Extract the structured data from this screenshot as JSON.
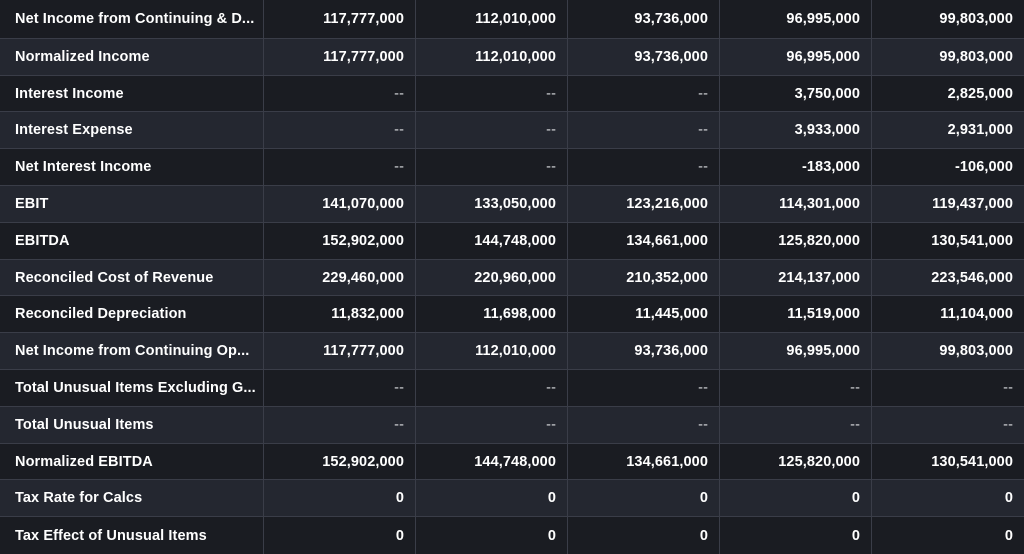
{
  "table": {
    "rows": [
      {
        "label": "Net Income from Continuing & D...",
        "values": [
          "117,777,000",
          "112,010,000",
          "93,736,000",
          "96,995,000",
          "99,803,000"
        ]
      },
      {
        "label": "Normalized Income",
        "values": [
          "117,777,000",
          "112,010,000",
          "93,736,000",
          "96,995,000",
          "99,803,000"
        ]
      },
      {
        "label": "Interest Income",
        "values": [
          "--",
          "--",
          "--",
          "3,750,000",
          "2,825,000"
        ]
      },
      {
        "label": "Interest Expense",
        "values": [
          "--",
          "--",
          "--",
          "3,933,000",
          "2,931,000"
        ]
      },
      {
        "label": "Net Interest Income",
        "values": [
          "--",
          "--",
          "--",
          "-183,000",
          "-106,000"
        ]
      },
      {
        "label": "EBIT",
        "values": [
          "141,070,000",
          "133,050,000",
          "123,216,000",
          "114,301,000",
          "119,437,000"
        ]
      },
      {
        "label": "EBITDA",
        "values": [
          "152,902,000",
          "144,748,000",
          "134,661,000",
          "125,820,000",
          "130,541,000"
        ]
      },
      {
        "label": "Reconciled Cost of Revenue",
        "values": [
          "229,460,000",
          "220,960,000",
          "210,352,000",
          "214,137,000",
          "223,546,000"
        ]
      },
      {
        "label": "Reconciled Depreciation",
        "values": [
          "11,832,000",
          "11,698,000",
          "11,445,000",
          "11,519,000",
          "11,104,000"
        ]
      },
      {
        "label": "Net Income from Continuing Op...",
        "values": [
          "117,777,000",
          "112,010,000",
          "93,736,000",
          "96,995,000",
          "99,803,000"
        ]
      },
      {
        "label": "Total Unusual Items Excluding G...",
        "values": [
          "--",
          "--",
          "--",
          "--",
          "--"
        ]
      },
      {
        "label": "Total Unusual Items",
        "values": [
          "--",
          "--",
          "--",
          "--",
          "--"
        ]
      },
      {
        "label": "Normalized EBITDA",
        "values": [
          "152,902,000",
          "144,748,000",
          "134,661,000",
          "125,820,000",
          "130,541,000"
        ]
      },
      {
        "label": "Tax Rate for Calcs",
        "values": [
          "0",
          "0",
          "0",
          "0",
          "0"
        ]
      },
      {
        "label": "Tax Effect of Unusual Items",
        "values": [
          "0",
          "0",
          "0",
          "0",
          "0"
        ]
      }
    ]
  },
  "colors": {
    "row_dark": "#1a1c22",
    "row_light": "#242730",
    "divider": "#3a3d48",
    "text": "#ffffff"
  }
}
